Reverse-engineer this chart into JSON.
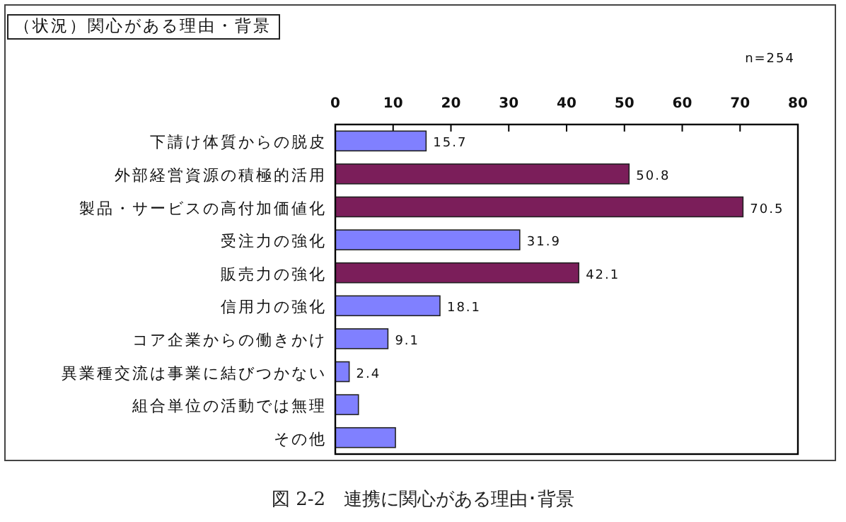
{
  "chart_data": {
    "type": "bar",
    "orientation": "horizontal",
    "title": "（状況）関心がある理由・背景",
    "categories": [
      "下請け体質からの脱皮",
      "外部経営資源の積極的活用",
      "製品・サービスの高付加価値化",
      "受注力の強化",
      "販売力の強化",
      "信用力の強化",
      "コア企業からの働きかけ",
      "異業種交流は事業に結びつかない",
      "組合単位の活動では無理",
      "その他"
    ],
    "values": [
      15.7,
      50.8,
      70.5,
      31.9,
      42.1,
      18.1,
      9.1,
      2.4,
      4.0,
      10.4
    ],
    "colors": [
      "#8080ff",
      "#7b1e5a",
      "#7b1e5a",
      "#8080ff",
      "#7b1e5a",
      "#8080ff",
      "#8080ff",
      "#8080ff",
      "#8080ff",
      "#8080ff"
    ],
    "value_labels": [
      "15.7",
      "50.8",
      "70.5",
      "31.9",
      "42.1",
      "18.1",
      "9.1",
      "2.4",
      null,
      null
    ],
    "xlim": [
      0,
      80
    ],
    "xticks": [
      0,
      10,
      20,
      30,
      40,
      50,
      60,
      70,
      80
    ],
    "grid": false,
    "annotations": [
      "n=254",
      "図 2-2　連携に関心がある理由･背景"
    ]
  }
}
